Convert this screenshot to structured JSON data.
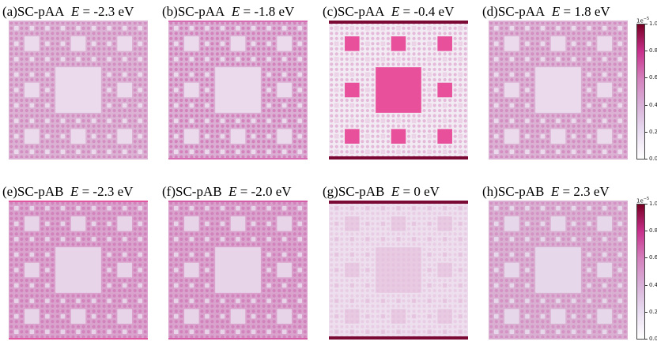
{
  "chart_data": [
    {
      "type": "heatmap",
      "label": "(a)",
      "system": "SC-pAA",
      "energy_symbol": "E",
      "energy_value": "= -2.3 eV",
      "pattern": "uniform",
      "colors": {
        "bg": "#dcb2d4",
        "carpet": "#d595c6",
        "hole": "#ebdaec",
        "dot": "#ce73b3",
        "edge": "#dcb2d4"
      }
    },
    {
      "type": "heatmap",
      "label": "(b)",
      "system": "SC-pAA",
      "energy_symbol": "E",
      "energy_value": "= -1.8 eV",
      "pattern": "uniform",
      "colors": {
        "bg": "#dbaed4",
        "carpet": "#d68cc4",
        "hole": "#ebdaec",
        "dot": "#cc5ea8",
        "edge": "#d66db2"
      }
    },
    {
      "type": "heatmap",
      "label": "(c)",
      "system": "SC-pAA",
      "energy_symbol": "E",
      "energy_value": "= -0.4 eV",
      "pattern": "localized",
      "colors": {
        "bg": "#f2ebf3",
        "carpet": "#ecd2e6",
        "hole": "#e8509c",
        "dot": "#d890c2",
        "edge": "#7a0a34"
      }
    },
    {
      "type": "heatmap",
      "label": "(d)",
      "system": "SC-pAA",
      "energy_symbol": "E",
      "energy_value": "= 1.8 eV",
      "pattern": "uniform",
      "colors": {
        "bg": "#dcb2d4",
        "carpet": "#d595c6",
        "hole": "#ebdaec",
        "dot": "#ce73b3",
        "edge": "#dcb2d4"
      }
    },
    {
      "type": "heatmap",
      "label": "(e)",
      "system": "SC-pAB",
      "energy_symbol": "E",
      "energy_value": "= -2.3 eV",
      "pattern": "uniform",
      "colors": {
        "bg": "#d9a3cd",
        "carpet": "#d38ac2",
        "hole": "#e8d4e8",
        "dot": "#cd6aae",
        "edge": "#e0569f"
      }
    },
    {
      "type": "heatmap",
      "label": "(f)",
      "system": "SC-pAB",
      "energy_symbol": "E",
      "energy_value": "= -2.0 eV",
      "pattern": "uniform",
      "colors": {
        "bg": "#d9a3cd",
        "carpet": "#d38ac2",
        "hole": "#e8d4e8",
        "dot": "#cd6aae",
        "edge": "#d45ea6"
      }
    },
    {
      "type": "heatmap",
      "label": "(g)",
      "system": "SC-pAB",
      "energy_symbol": "E",
      "energy_value": "= 0 eV",
      "pattern": "blurred",
      "colors": {
        "bg": "#ecdcec",
        "carpet": "#e2bada",
        "hole": "#dfaed4",
        "dot": "#d89ccc",
        "edge": "#7a0a34"
      }
    },
    {
      "type": "heatmap",
      "label": "(h)",
      "system": "SC-pAB",
      "energy_symbol": "E",
      "energy_value": "= 2.3 eV",
      "pattern": "uniform",
      "colors": {
        "bg": "#dab0d2",
        "carpet": "#d49ac6",
        "hole": "#e6d8ea",
        "dot": "#cf7cb8",
        "edge": "#dab0d2"
      }
    }
  ],
  "colorbar": {
    "offset_base": "1e",
    "offset_exp": "−5",
    "ticks": [
      "1.0",
      "0.8",
      "0.6",
      "0.4",
      "0.2",
      "0.0"
    ],
    "range": [
      0.0,
      1.0
    ],
    "colormap": "white-purple-magenta-maroon"
  }
}
